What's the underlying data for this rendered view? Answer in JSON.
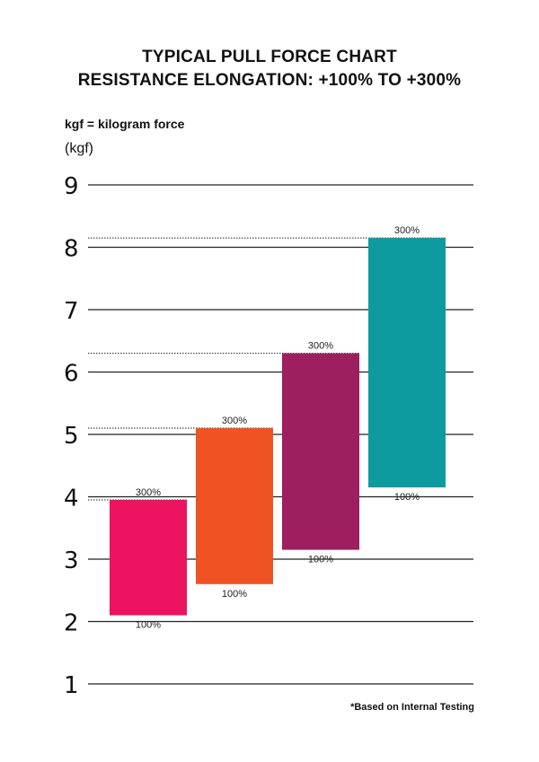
{
  "chart_data": {
    "type": "bar",
    "subtype": "floating-range",
    "title": "TYPICAL PULL FORCE CHART",
    "subtitle": "RESISTANCE ELONGATION: +100% TO +300%",
    "unit_note": "kgf = kilogram force",
    "ylabel": "(kgf)",
    "ylim": [
      1,
      9
    ],
    "yticks": [
      "1",
      "2",
      "3",
      "4",
      "5",
      "6",
      "7",
      "8",
      "9"
    ],
    "grid": true,
    "footnote": "*Based on Internal Testing",
    "low_label": "100%",
    "high_label": "300%",
    "series": [
      {
        "color": "#ec1360",
        "low": 2.1,
        "high": 3.95
      },
      {
        "color": "#f05323",
        "low": 2.6,
        "high": 5.1
      },
      {
        "color": "#9d1f5f",
        "low": 3.15,
        "high": 6.3
      },
      {
        "color": "#0e9ba0",
        "low": 4.15,
        "high": 8.15
      }
    ]
  }
}
